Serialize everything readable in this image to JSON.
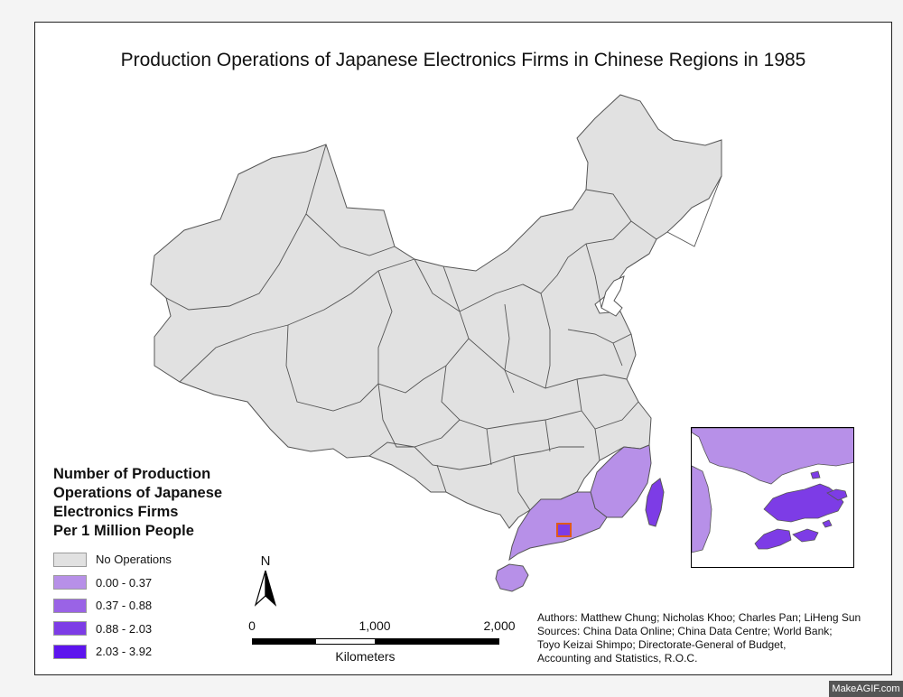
{
  "map": {
    "title": "Production Operations of Japanese Electronics Firms in Chinese Regions in 1985",
    "legend": {
      "title_lines": [
        "Number of Production",
        "Operations of Japanese",
        "Electronics Firms",
        "Per 1 Million People"
      ],
      "items": [
        {
          "label": "No Operations",
          "color": "#e1e1e1"
        },
        {
          "label": "0.00 - 0.37",
          "color": "#b790e8"
        },
        {
          "label": "0.37 - 0.88",
          "color": "#9a63e6"
        },
        {
          "label": "0.88 - 2.03",
          "color": "#7d3ce6"
        },
        {
          "label": "2.03 - 3.92",
          "color": "#5d14ee"
        }
      ]
    },
    "north_arrow": {
      "label": "N"
    },
    "scale_bar": {
      "ticks": [
        "0",
        "1,000",
        "2,000"
      ],
      "unit": "Kilometers"
    },
    "credits": {
      "authors": "Authors: Matthew Chung; Nicholas Khoo; Charles Pan; LiHeng Sun",
      "sources_lines": [
        "Sources: China Data Online; China Data Centre; World Bank;",
        "Toyo Keizai Shimpo; Directorate-General of Budget,",
        "Accounting and Statistics, R.O.C."
      ]
    },
    "colors": {
      "no_ops": "#e1e1e1",
      "class1": "#b790e8",
      "class4": "#7d3ce6",
      "highlight_box": "#e05a1a",
      "border": "#555555"
    }
  },
  "watermark": "MakeAGIF.com"
}
